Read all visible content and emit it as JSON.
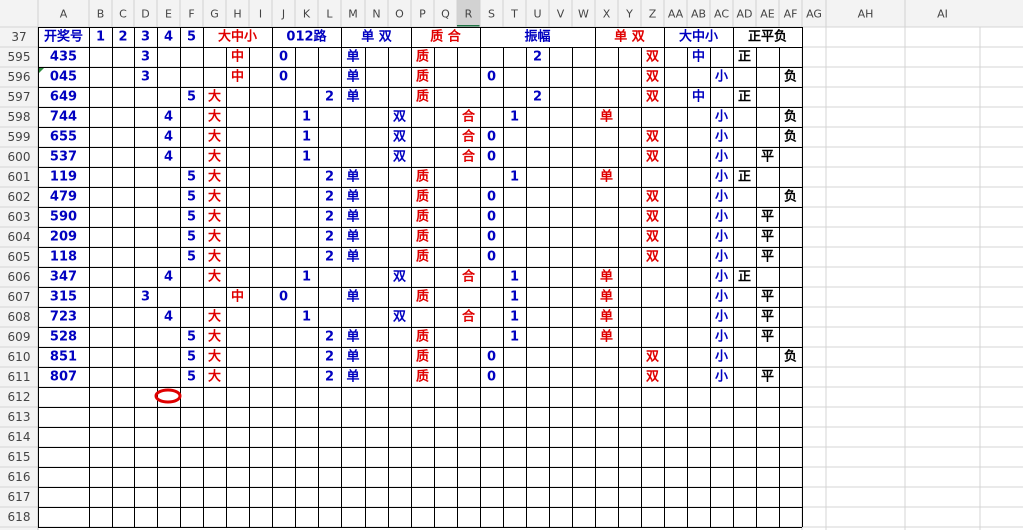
{
  "sheet": {
    "columns": [
      "A",
      "B",
      "C",
      "D",
      "E",
      "F",
      "G",
      "H",
      "I",
      "J",
      "K",
      "L",
      "M",
      "N",
      "O",
      "P",
      "Q",
      "R",
      "S",
      "T",
      "U",
      "V",
      "W",
      "X",
      "Y",
      "Z",
      "AA",
      "AB",
      "AC",
      "AD",
      "AE",
      "AF",
      "AG",
      "AH",
      "AI"
    ],
    "header_row": {
      "row_number": "37",
      "cells": {
        "A": "开奖号",
        "B": "1",
        "C": "2",
        "D": "3",
        "E": "4",
        "F": "5",
        "H": "大中小",
        "K": "012路",
        "N": "单 双",
        "Q": "质 合",
        "U": "振幅",
        "Y": "单 双",
        "AB": "大中小",
        "AE": "正平负"
      }
    },
    "rows": [
      {
        "row_number": "595",
        "cells": {
          "A": "435",
          "D": "3",
          "H": "中",
          "J": "0",
          "M": "单",
          "P": "质",
          "U": "2",
          "Z": "双",
          "AB": "中",
          "AD": "正"
        }
      },
      {
        "row_number": "596",
        "cells": {
          "A": "045",
          "D": "3",
          "H": "中",
          "J": "0",
          "M": "单",
          "P": "质",
          "S": "0",
          "Z": "双",
          "AC": "小",
          "AF": "负"
        }
      },
      {
        "row_number": "597",
        "cells": {
          "A": "649",
          "F": "5",
          "G": "大",
          "L": "2",
          "M": "单",
          "P": "质",
          "U": "2",
          "Z": "双",
          "AB": "中",
          "AD": "正"
        }
      },
      {
        "row_number": "598",
        "cells": {
          "A": "744",
          "E": "4",
          "G": "大",
          "K": "1",
          "O": "双",
          "R": "合",
          "T": "1",
          "X": "单",
          "AC": "小",
          "AF": "负"
        }
      },
      {
        "row_number": "599",
        "cells": {
          "A": "655",
          "E": "4",
          "G": "大",
          "K": "1",
          "O": "双",
          "R": "合",
          "S": "0",
          "Z": "双",
          "AC": "小",
          "AF": "负"
        }
      },
      {
        "row_number": "600",
        "cells": {
          "A": "537",
          "E": "4",
          "G": "大",
          "K": "1",
          "O": "双",
          "R": "合",
          "S": "0",
          "Z": "双",
          "AC": "小",
          "AE": "平"
        }
      },
      {
        "row_number": "601",
        "cells": {
          "A": "119",
          "F": "5",
          "G": "大",
          "L": "2",
          "M": "单",
          "P": "质",
          "T": "1",
          "X": "单",
          "AC": "小",
          "AD": "正"
        }
      },
      {
        "row_number": "602",
        "cells": {
          "A": "479",
          "F": "5",
          "G": "大",
          "L": "2",
          "M": "单",
          "P": "质",
          "S": "0",
          "Z": "双",
          "AC": "小",
          "AF": "负"
        }
      },
      {
        "row_number": "603",
        "cells": {
          "A": "590",
          "F": "5",
          "G": "大",
          "L": "2",
          "M": "单",
          "P": "质",
          "S": "0",
          "Z": "双",
          "AC": "小",
          "AE": "平"
        }
      },
      {
        "row_number": "604",
        "cells": {
          "A": "209",
          "F": "5",
          "G": "大",
          "L": "2",
          "M": "单",
          "P": "质",
          "S": "0",
          "Z": "双",
          "AC": "小",
          "AE": "平"
        }
      },
      {
        "row_number": "605",
        "cells": {
          "A": "118",
          "F": "5",
          "G": "大",
          "L": "2",
          "M": "单",
          "P": "质",
          "S": "0",
          "Z": "双",
          "AC": "小",
          "AE": "平"
        }
      },
      {
        "row_number": "606",
        "cells": {
          "A": "347",
          "E": "4",
          "G": "大",
          "K": "1",
          "O": "双",
          "R": "合",
          "T": "1",
          "X": "单",
          "AC": "小",
          "AD": "正"
        }
      },
      {
        "row_number": "607",
        "cells": {
          "A": "315",
          "D": "3",
          "H": "中",
          "J": "0",
          "M": "单",
          "P": "质",
          "T": "1",
          "X": "单",
          "AC": "小",
          "AE": "平"
        }
      },
      {
        "row_number": "608",
        "cells": {
          "A": "723",
          "E": "4",
          "G": "大",
          "K": "1",
          "O": "双",
          "R": "合",
          "T": "1",
          "X": "单",
          "AC": "小",
          "AE": "平"
        }
      },
      {
        "row_number": "609",
        "cells": {
          "A": "528",
          "F": "5",
          "G": "大",
          "L": "2",
          "M": "单",
          "P": "质",
          "T": "1",
          "X": "单",
          "AC": "小",
          "AE": "平"
        }
      },
      {
        "row_number": "610",
        "cells": {
          "A": "851",
          "F": "5",
          "G": "大",
          "L": "2",
          "M": "单",
          "P": "质",
          "S": "0",
          "Z": "双",
          "AC": "小",
          "AF": "负"
        }
      },
      {
        "row_number": "611",
        "cells": {
          "A": "807",
          "F": "5",
          "G": "大",
          "L": "2",
          "M": "单",
          "P": "质",
          "S": "0",
          "Z": "双",
          "AC": "小",
          "AE": "平"
        }
      },
      {
        "row_number": "612",
        "cells": {}
      },
      {
        "row_number": "613",
        "cells": {}
      },
      {
        "row_number": "614",
        "cells": {}
      },
      {
        "row_number": "615",
        "cells": {}
      },
      {
        "row_number": "616",
        "cells": {}
      },
      {
        "row_number": "617",
        "cells": {}
      },
      {
        "row_number": "618",
        "cells": {}
      }
    ]
  }
}
